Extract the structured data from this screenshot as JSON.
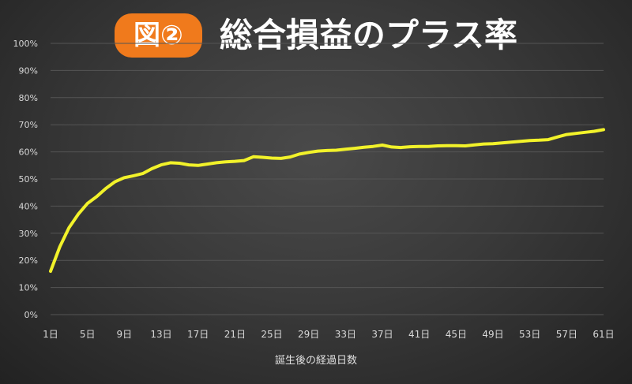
{
  "header": {
    "badge": "図②",
    "title": "総合損益のプラス率"
  },
  "colors": {
    "badge_bg": "#f07a1c",
    "line": "#f2f22a",
    "grid": "#555555",
    "tick_text": "#d8d8d8"
  },
  "chart_data": {
    "type": "line",
    "title": "総合損益のプラス率",
    "xlabel": "誕生後の経過日数",
    "ylabel": "",
    "ylim": [
      0,
      100
    ],
    "xlim": [
      1,
      61
    ],
    "grid": true,
    "x_ticks": [
      "1日",
      "5日",
      "9日",
      "13日",
      "17日",
      "21日",
      "25日",
      "29日",
      "33日",
      "37日",
      "41日",
      "45日",
      "49日",
      "53日",
      "57日",
      "61日"
    ],
    "y_ticks": [
      "0%",
      "10%",
      "20%",
      "30%",
      "40%",
      "50%",
      "60%",
      "70%",
      "80%",
      "90%",
      "100%"
    ],
    "series": [
      {
        "x": [
          1,
          2,
          3,
          4,
          5,
          6,
          7,
          8,
          9,
          10,
          11,
          12,
          13,
          14,
          15,
          16,
          17,
          18,
          19,
          20,
          21,
          22,
          23,
          24,
          25,
          26,
          27,
          28,
          29,
          30,
          31,
          32,
          33,
          34,
          35,
          36,
          37,
          38,
          39,
          40,
          41,
          42,
          43,
          44,
          45,
          46,
          47,
          48,
          49,
          50,
          51,
          52,
          53,
          54,
          55,
          56,
          57,
          58,
          59,
          60,
          61
        ],
        "values": [
          16,
          25,
          32,
          37,
          41,
          43.5,
          46.5,
          49,
          50.5,
          51.2,
          52,
          53.8,
          55.2,
          56,
          55.8,
          55.2,
          55,
          55.5,
          56,
          56.3,
          56.5,
          56.8,
          58.2,
          58,
          57.7,
          57.6,
          58.1,
          59.2,
          59.8,
          60.3,
          60.5,
          60.6,
          61,
          61.3,
          61.7,
          62,
          62.5,
          61.8,
          61.6,
          61.9,
          62,
          62,
          62.2,
          62.3,
          62.3,
          62.2,
          62.6,
          62.9,
          63,
          63.3,
          63.6,
          63.9,
          64.2,
          64.3,
          64.5,
          65.5,
          66.4,
          66.8,
          67.2,
          67.6,
          68.2
        ]
      }
    ]
  }
}
